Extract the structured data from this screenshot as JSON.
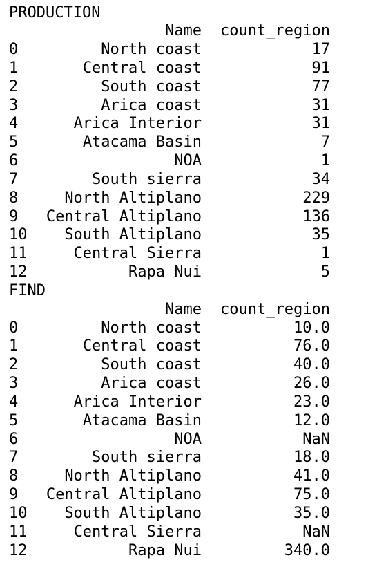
{
  "sections": [
    {
      "title": "PRODUCTION",
      "columns": [
        "Name",
        "count_region"
      ],
      "rows": [
        [
          0,
          "North coast",
          17
        ],
        [
          1,
          "Central coast",
          91
        ],
        [
          2,
          "South coast",
          77
        ],
        [
          3,
          "Arica coast",
          31
        ],
        [
          4,
          "Arica Interior",
          31
        ],
        [
          5,
          "Atacama Basin",
          7
        ],
        [
          6,
          "NOA",
          1
        ],
        [
          7,
          "South sierra",
          34
        ],
        [
          8,
          "North Altiplano",
          229
        ],
        [
          9,
          "Central Altiplano",
          136
        ],
        [
          10,
          "South Altiplano",
          35
        ],
        [
          11,
          "Central Sierra",
          1
        ],
        [
          12,
          "Rapa Nui",
          5
        ]
      ]
    },
    {
      "title": "FIND",
      "columns": [
        "Name",
        "count_region"
      ],
      "rows": [
        [
          0,
          "North coast",
          "10.0"
        ],
        [
          1,
          "Central coast",
          "76.0"
        ],
        [
          2,
          "South coast",
          "40.0"
        ],
        [
          3,
          "Arica coast",
          "26.0"
        ],
        [
          4,
          "Arica Interior",
          "23.0"
        ],
        [
          5,
          "Atacama Basin",
          "12.0"
        ],
        [
          6,
          "NOA",
          "NaN"
        ],
        [
          7,
          "South sierra",
          "18.0"
        ],
        [
          8,
          "North Altiplano",
          "41.0"
        ],
        [
          9,
          "Central Altiplano",
          "75.0"
        ],
        [
          10,
          "South Altiplano",
          "35.0"
        ],
        [
          11,
          "Central Sierra",
          "NaN"
        ],
        [
          12,
          "Rapa Nui",
          "340.0"
        ]
      ]
    }
  ]
}
